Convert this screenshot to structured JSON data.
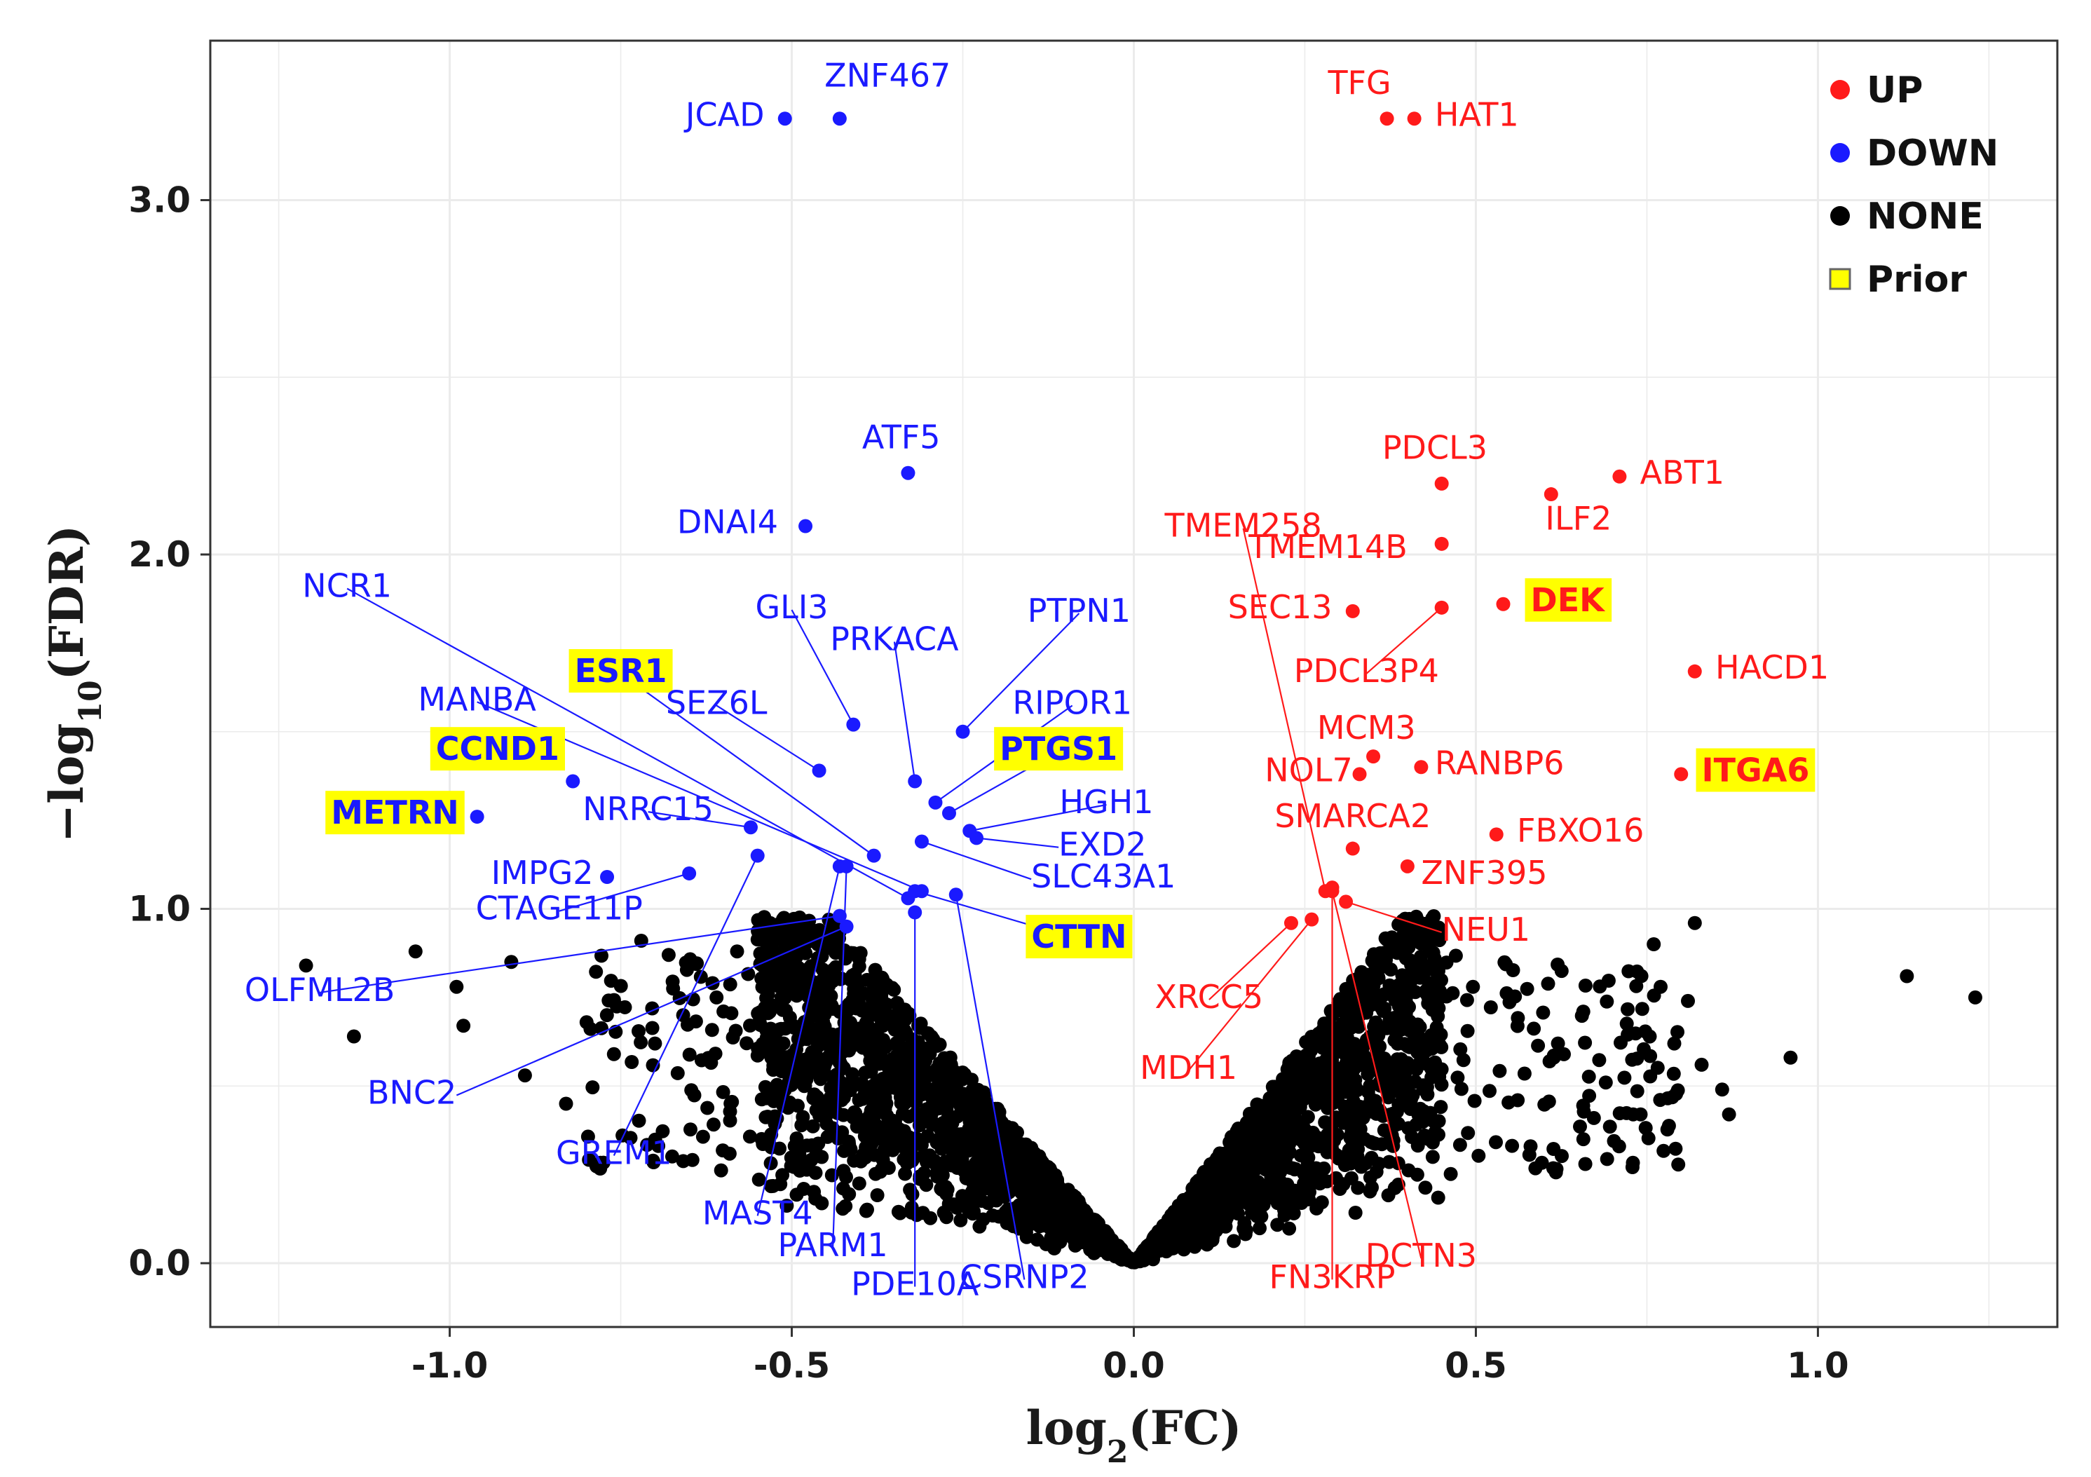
{
  "chart_data": {
    "type": "scatter",
    "title": "",
    "xlabel": "log2(FC)",
    "ylabel": "-log10(FDR)",
    "xlim": [
      -1.35,
      1.35
    ],
    "ylim": [
      -0.18,
      3.45
    ],
    "xticks": [
      -1.0,
      -0.5,
      0.0,
      0.5,
      1.0
    ],
    "xtick_labels": [
      "-1.0",
      "-0.5",
      "0.0",
      "0.5",
      "1.0"
    ],
    "yticks": [
      0.0,
      1.0,
      2.0,
      3.0
    ],
    "ytick_labels": [
      "0.0",
      "1.0",
      "2.0",
      "3.0"
    ],
    "grid": true,
    "legend_position": "top-right",
    "colors": {
      "UP": "#ff1a1a",
      "DOWN": "#1a1aff",
      "NONE": "#000000",
      "Prior": "#ffff00"
    },
    "legend": [
      {
        "label": "UP",
        "color": "#ff1a1a",
        "shape": "circle"
      },
      {
        "label": "DOWN",
        "color": "#1a1aff",
        "shape": "circle"
      },
      {
        "label": "NONE",
        "color": "#000000",
        "shape": "circle"
      },
      {
        "label": "Prior",
        "color": "#ffff00",
        "shape": "square"
      }
    ],
    "series": [
      {
        "name": "UP",
        "points": [
          {
            "gene": "TFG",
            "x": 0.37,
            "y": 3.23,
            "label_x": 0.33,
            "label_y": 3.3,
            "anchor": "middle"
          },
          {
            "gene": "HAT1",
            "x": 0.41,
            "y": 3.23,
            "label_x": 0.44,
            "label_y": 3.21,
            "anchor": "start"
          },
          {
            "gene": "PDCL3",
            "x": 0.45,
            "y": 2.2,
            "label_x": 0.44,
            "label_y": 2.27,
            "anchor": "middle"
          },
          {
            "gene": "ABT1",
            "x": 0.71,
            "y": 2.22,
            "label_x": 0.74,
            "label_y": 2.2,
            "anchor": "start"
          },
          {
            "gene": "ILF2",
            "x": 0.61,
            "y": 2.17,
            "label_x": 0.65,
            "label_y": 2.07,
            "anchor": "middle"
          },
          {
            "gene": "TMEM258",
            "x": 0.28,
            "y": 1.05,
            "label_x": 0.16,
            "label_y": 2.05,
            "anchor": "middle",
            "leader": true
          },
          {
            "gene": "TMEM14B",
            "x": 0.45,
            "y": 2.03,
            "label_x": 0.4,
            "label_y": 1.99,
            "anchor": "end"
          },
          {
            "gene": "SEC13",
            "x": 0.32,
            "y": 1.84,
            "label_x": 0.29,
            "label_y": 1.82,
            "anchor": "end"
          },
          {
            "gene": "PDCL3P4",
            "x": 0.45,
            "y": 1.85,
            "label_x": 0.34,
            "label_y": 1.64,
            "anchor": "middle",
            "leader": true
          },
          {
            "gene": "DEK",
            "x": 0.54,
            "y": 1.86,
            "label_x": 0.58,
            "label_y": 1.84,
            "anchor": "start",
            "prior": true
          },
          {
            "gene": "HACD1",
            "x": 0.82,
            "y": 1.67,
            "label_x": 0.85,
            "label_y": 1.65,
            "anchor": "start"
          },
          {
            "gene": "MCM3",
            "x": 0.35,
            "y": 1.43,
            "label_x": 0.34,
            "label_y": 1.48,
            "anchor": "middle"
          },
          {
            "gene": "NOL7",
            "x": 0.33,
            "y": 1.38,
            "label_x": 0.32,
            "label_y": 1.36,
            "anchor": "end"
          },
          {
            "gene": "RANBP6",
            "x": 0.42,
            "y": 1.4,
            "label_x": 0.44,
            "label_y": 1.38,
            "anchor": "start"
          },
          {
            "gene": "ITGA6",
            "x": 0.8,
            "y": 1.38,
            "label_x": 0.83,
            "label_y": 1.36,
            "anchor": "start",
            "prior": true
          },
          {
            "gene": "SMARCA2",
            "x": 0.32,
            "y": 1.17,
            "label_x": 0.32,
            "label_y": 1.23,
            "anchor": "middle"
          },
          {
            "gene": "FBXO16",
            "x": 0.53,
            "y": 1.21,
            "label_x": 0.56,
            "label_y": 1.19,
            "anchor": "start"
          },
          {
            "gene": "ZNF395",
            "x": 0.4,
            "y": 1.12,
            "label_x": 0.42,
            "label_y": 1.07,
            "anchor": "start"
          },
          {
            "gene": "NEU1",
            "x": 0.31,
            "y": 1.02,
            "label_x": 0.45,
            "label_y": 0.91,
            "anchor": "start",
            "leader": true
          },
          {
            "gene": "XRCC5",
            "x": 0.23,
            "y": 0.96,
            "label_x": 0.11,
            "label_y": 0.72,
            "anchor": "middle",
            "leader": true
          },
          {
            "gene": "MDH1",
            "x": 0.26,
            "y": 0.97,
            "label_x": 0.08,
            "label_y": 0.52,
            "anchor": "middle",
            "leader": true
          },
          {
            "gene": "FN3KRP",
            "x": 0.29,
            "y": 1.06,
            "label_x": 0.29,
            "label_y": -0.07,
            "anchor": "middle",
            "leader": true
          },
          {
            "gene": "DCTN3",
            "x": 0.29,
            "y": 1.05,
            "label_x": 0.42,
            "label_y": -0.01,
            "anchor": "middle",
            "leader": true
          }
        ]
      },
      {
        "name": "DOWN",
        "points": [
          {
            "gene": "JCAD",
            "x": -0.51,
            "y": 3.23,
            "label_x": -0.54,
            "label_y": 3.21,
            "anchor": "end"
          },
          {
            "gene": "ZNF467",
            "x": -0.43,
            "y": 3.23,
            "label_x": -0.36,
            "label_y": 3.32,
            "anchor": "middle"
          },
          {
            "gene": "ATF5",
            "x": -0.33,
            "y": 2.23,
            "label_x": -0.34,
            "label_y": 2.3,
            "anchor": "middle"
          },
          {
            "gene": "DNAI4",
            "x": -0.48,
            "y": 2.08,
            "label_x": -0.52,
            "label_y": 2.06,
            "anchor": "end"
          },
          {
            "gene": "NCR1",
            "x": -0.33,
            "y": 1.03,
            "label_x": -1.15,
            "label_y": 1.88,
            "anchor": "middle",
            "leader": true
          },
          {
            "gene": "GLI3",
            "x": -0.41,
            "y": 1.52,
            "label_x": -0.5,
            "label_y": 1.82,
            "anchor": "middle",
            "leader": true
          },
          {
            "gene": "PRKACA",
            "x": -0.32,
            "y": 1.36,
            "label_x": -0.35,
            "label_y": 1.73,
            "anchor": "middle",
            "leader": true
          },
          {
            "gene": "PTPN1",
            "x": -0.25,
            "y": 1.5,
            "label_x": -0.08,
            "label_y": 1.81,
            "anchor": "middle",
            "leader": true
          },
          {
            "gene": "ESR1",
            "x": -0.38,
            "y": 1.15,
            "label_x": -0.75,
            "label_y": 1.64,
            "anchor": "middle",
            "prior": true,
            "leader": true
          },
          {
            "gene": "SEZ6L",
            "x": -0.46,
            "y": 1.39,
            "label_x": -0.61,
            "label_y": 1.55,
            "anchor": "middle",
            "leader": true
          },
          {
            "gene": "RIPOR1",
            "x": -0.29,
            "y": 1.3,
            "label_x": -0.09,
            "label_y": 1.55,
            "anchor": "middle",
            "leader": true
          },
          {
            "gene": "MANBA",
            "x": -0.31,
            "y": 1.05,
            "label_x": -0.96,
            "label_y": 1.56,
            "anchor": "middle",
            "leader": true
          },
          {
            "gene": "CCND1",
            "x": -0.82,
            "y": 1.36,
            "label_x": -0.93,
            "label_y": 1.42,
            "anchor": "middle",
            "prior": true
          },
          {
            "gene": "PTGS1",
            "x": -0.27,
            "y": 1.27,
            "label_x": -0.11,
            "label_y": 1.42,
            "anchor": "middle",
            "prior": true,
            "leader": true
          },
          {
            "gene": "METRN",
            "x": -0.96,
            "y": 1.26,
            "label_x": -1.08,
            "label_y": 1.24,
            "anchor": "middle",
            "prior": true
          },
          {
            "gene": "HGH1",
            "x": -0.24,
            "y": 1.22,
            "label_x": -0.04,
            "label_y": 1.27,
            "anchor": "middle",
            "leader": true
          },
          {
            "gene": "NRRC15",
            "x": -0.56,
            "y": 1.23,
            "label_x": -0.71,
            "label_y": 1.25,
            "anchor": "middle",
            "leader": true
          },
          {
            "gene": "EXD2",
            "x": -0.23,
            "y": 1.2,
            "label_x": -0.11,
            "label_y": 1.15,
            "anchor": "start",
            "leader": true
          },
          {
            "gene": "SLC43A1",
            "x": -0.31,
            "y": 1.19,
            "label_x": -0.15,
            "label_y": 1.06,
            "anchor": "start",
            "leader": true
          },
          {
            "gene": "IMPG2",
            "x": -0.77,
            "y": 1.09,
            "label_x": -0.79,
            "label_y": 1.07,
            "anchor": "end"
          },
          {
            "gene": "CTAGE11P",
            "x": -0.65,
            "y": 1.1,
            "label_x": -0.84,
            "label_y": 0.97,
            "anchor": "middle",
            "leader": true
          },
          {
            "gene": "CTTN",
            "x": -0.32,
            "y": 1.05,
            "label_x": -0.08,
            "label_y": 0.89,
            "anchor": "middle",
            "prior": true,
            "leader": true
          },
          {
            "gene": "OLFML2B",
            "x": -0.43,
            "y": 0.98,
            "label_x": -1.19,
            "label_y": 0.74,
            "anchor": "middle",
            "leader": true
          },
          {
            "gene": "BNC2",
            "x": -0.42,
            "y": 0.95,
            "label_x": -0.99,
            "label_y": 0.45,
            "anchor": "end",
            "leader": true
          },
          {
            "gene": "GREM1",
            "x": -0.55,
            "y": 1.15,
            "label_x": -0.76,
            "label_y": 0.28,
            "anchor": "middle",
            "leader": true
          },
          {
            "gene": "MAST4",
            "x": -0.43,
            "y": 1.12,
            "label_x": -0.55,
            "label_y": 0.11,
            "anchor": "middle",
            "leader": true
          },
          {
            "gene": "PARM1",
            "x": -0.42,
            "y": 1.12,
            "label_x": -0.44,
            "label_y": 0.02,
            "anchor": "middle",
            "leader": true
          },
          {
            "gene": "PDE10A",
            "x": -0.32,
            "y": 0.99,
            "label_x": -0.32,
            "label_y": -0.09,
            "anchor": "middle",
            "leader": true
          },
          {
            "gene": "CSRNP2",
            "x": -0.26,
            "y": 1.04,
            "label_x": -0.16,
            "label_y": -0.07,
            "anchor": "middle",
            "leader": true
          }
        ]
      },
      {
        "name": "NONE",
        "description_counts": "thousands of non-significant points forming a V-shaped cloud",
        "points": [
          {
            "x": -1.21,
            "y": 0.84
          },
          {
            "x": -1.14,
            "y": 0.64
          },
          {
            "x": -1.05,
            "y": 0.88
          },
          {
            "x": -0.99,
            "y": 0.78
          },
          {
            "x": -0.98,
            "y": 0.67
          },
          {
            "x": -0.91,
            "y": 0.85
          },
          {
            "x": -0.89,
            "y": 0.53
          },
          {
            "x": -0.83,
            "y": 0.45
          },
          {
            "x": -0.8,
            "y": 0.68
          },
          {
            "x": -0.76,
            "y": 0.59
          },
          {
            "x": -0.72,
            "y": 0.91
          },
          {
            "x": -0.7,
            "y": 0.62
          },
          {
            "x": -0.68,
            "y": 0.87
          },
          {
            "x": -0.61,
            "y": 0.75
          },
          {
            "x": -0.58,
            "y": 0.88
          },
          {
            "x": 0.76,
            "y": 0.9
          },
          {
            "x": 0.77,
            "y": 0.78
          },
          {
            "x": 0.79,
            "y": 0.62
          },
          {
            "x": 0.81,
            "y": 0.74
          },
          {
            "x": 0.82,
            "y": 0.96
          },
          {
            "x": 0.83,
            "y": 0.56
          },
          {
            "x": 0.86,
            "y": 0.49
          },
          {
            "x": 0.87,
            "y": 0.42
          },
          {
            "x": 0.96,
            "y": 0.58
          },
          {
            "x": 1.13,
            "y": 0.81
          },
          {
            "x": 1.23,
            "y": 0.75
          },
          {
            "x": 0.66,
            "y": 0.28
          },
          {
            "x": 0.73,
            "y": 0.42
          },
          {
            "x": 0.58,
            "y": 0.33
          },
          {
            "x": 0.62,
            "y": 0.62
          }
        ]
      }
    ]
  }
}
